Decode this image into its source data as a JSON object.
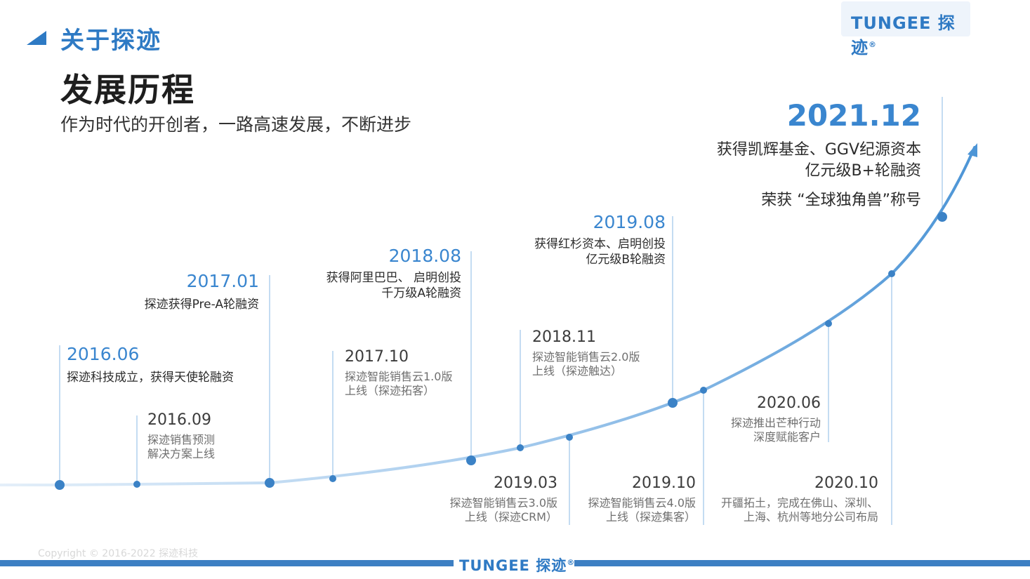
{
  "header": {
    "section_title": "关于探迹",
    "main_title": "发展历程",
    "subtitle": "作为时代的开创者，一路高速发展，不断进步",
    "logo_text": "TUNGEE 探迹",
    "logo_mark": "®"
  },
  "milestones": [
    {
      "date": "2016.06",
      "lines": [
        "探迹科技成立，获得天使轮融资"
      ]
    },
    {
      "date": "2016.09",
      "lines": [
        "探迹销售预测",
        "解决方案上线"
      ]
    },
    {
      "date": "2017.01",
      "lines": [
        "探迹获得Pre-A轮融资"
      ]
    },
    {
      "date": "2017.10",
      "lines": [
        "探迹智能销售云1.0版",
        "上线（探迹拓客）"
      ]
    },
    {
      "date": "2018.08",
      "lines": [
        "获得阿里巴巴、 启明创投",
        "千万级A轮融资"
      ]
    },
    {
      "date": "2019.03",
      "lines": [
        "探迹智能销售云3.0版",
        "上线（探迹CRM）"
      ]
    },
    {
      "date": "2018.11",
      "lines": [
        "探迹智能销售云2.0版",
        "上线（探迹触达）"
      ]
    },
    {
      "date": "2019.08",
      "lines": [
        "获得红杉资本、启明创投",
        "亿元级B轮融资"
      ]
    },
    {
      "date": "2019.10",
      "lines": [
        "探迹智能销售云4.0版",
        "上线（探迹集客）"
      ]
    },
    {
      "date": "2020.06",
      "lines": [
        "探迹推出芒种行动",
        "深度赋能客户"
      ]
    },
    {
      "date": "2020.10",
      "lines": [
        "开疆拓土，完成在佛山、深圳、",
        "上海、杭州等地分公司布局"
      ]
    },
    {
      "date": "2021.12",
      "lines": [
        "获得凯辉基金、GGV纪源资本",
        "亿元级B+轮融资",
        "荣获 “全球独角兽”称号"
      ]
    }
  ],
  "footer": {
    "copyright": "Copyright © 2016-2022 探迹科技",
    "logo_text": "TUNGEE 探迹",
    "logo_mark": "®"
  },
  "colors": {
    "accent": "#2e7ac4",
    "curve": "#8ec1e8",
    "dot": "#3b82c6",
    "line": "#bcd6ee"
  }
}
